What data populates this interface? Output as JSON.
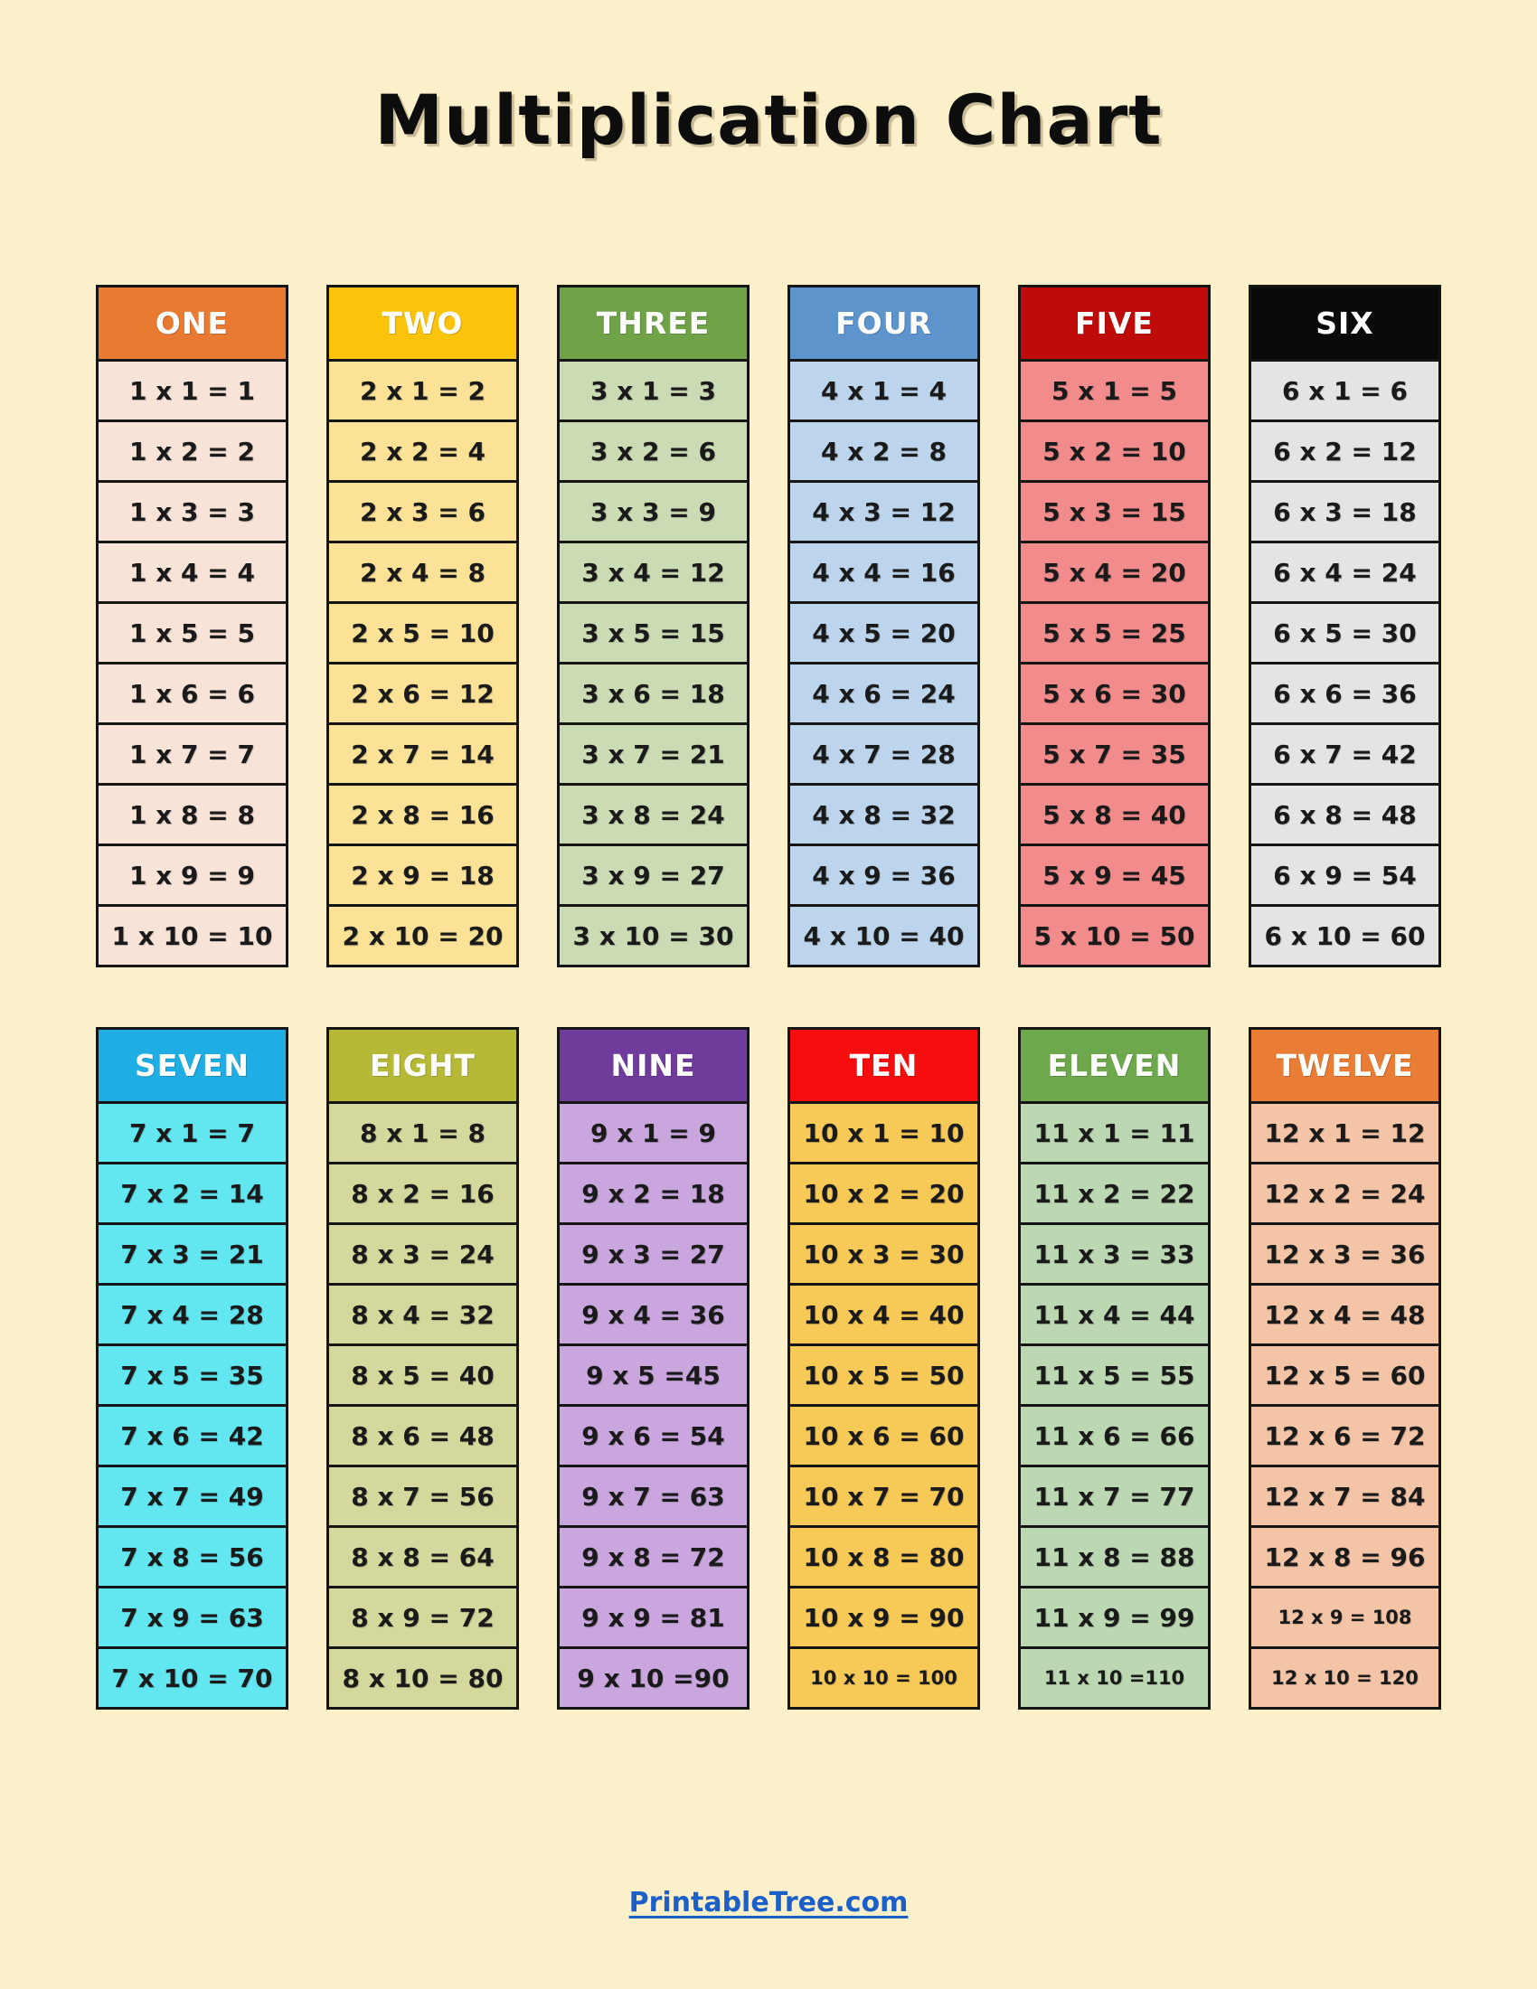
{
  "page": {
    "title": "Multiplication Chart",
    "footer_link": "PrintableTree.com",
    "background_color": "#FCF0CB",
    "link_color": "#1B5FC8",
    "border_color": "#151515"
  },
  "tables": [
    {
      "name": "ONE",
      "header_bg": "#E87A31",
      "header_text_color": "#FFFFFF",
      "body_bg": "#F8E3D8",
      "rows": [
        "1 x 1 = 1",
        "1 x 2 = 2",
        "1 x 3 = 3",
        "1 x 4 = 4",
        "1 x 5 = 5",
        "1 x 6 = 6",
        "1 x 7 = 7",
        "1 x 8 = 8",
        "1 x 9 = 9",
        "1 x 10 = 10"
      ]
    },
    {
      "name": "TWO",
      "header_bg": "#FCC30B",
      "header_text_color": "#FFFFFF",
      "body_bg": "#FBE296",
      "rows": [
        "2 x 1 = 2",
        "2 x 2 = 4",
        "2 x 3 = 6",
        "2 x 4 = 8",
        "2 x 5 = 10",
        "2 x 6 = 12",
        "2 x 7 = 14",
        "2 x 8 = 16",
        "2 x 9 = 18",
        "2 x 10 = 20"
      ]
    },
    {
      "name": "THREE",
      "header_bg": "#70A347",
      "header_text_color": "#FFFFFF",
      "body_bg": "#CBDCB4",
      "rows": [
        "3 x 1 = 3",
        "3 x 2 = 6",
        "3 x 3 = 9",
        "3 x 4 = 12",
        "3 x 5 = 15",
        "3 x 6 = 18",
        "3 x 7 = 21",
        "3 x 8 = 24",
        "3 x 9 = 27",
        "3 x 10 = 30"
      ]
    },
    {
      "name": "FOUR",
      "header_bg": "#5D94CC",
      "header_text_color": "#FFFFFF",
      "body_bg": "#BDD5EC",
      "rows": [
        "4 x 1 = 4",
        "4 x 2 = 8",
        "4 x 3 = 12",
        "4 x 4 = 16",
        "4 x 5 = 20",
        "4 x 6 = 24",
        "4 x 7 = 28",
        "4 x 8 = 32",
        "4 x 9 = 36",
        "4 x 10 = 40"
      ]
    },
    {
      "name": "FIVE",
      "header_bg": "#C00B0B",
      "header_text_color": "#FFFFFF",
      "body_bg": "#F28C8C",
      "rows": [
        "5 x 1 = 5",
        "5 x 2 = 10",
        "5 x 3 = 15",
        "5 x 4 = 20",
        "5 x 5 = 25",
        "5 x 6 = 30",
        "5 x 7 = 35",
        "5 x 8 = 40",
        "5 x 9 = 45",
        "5 x 10 = 50"
      ]
    },
    {
      "name": "SIX",
      "header_bg": "#0A0A0A",
      "header_text_color": "#FFFFFF",
      "body_bg": "#E4E4E4",
      "rows": [
        "6 x 1 = 6",
        "6 x 2 = 12",
        "6 x 3 = 18",
        "6 x 4 = 24",
        "6 x 5 = 30",
        "6 x 6 = 36",
        "6 x 7 = 42",
        "6 x 8 = 48",
        "6 x 9 = 54",
        "6 x 10 = 60"
      ]
    },
    {
      "name": "SEVEN",
      "header_bg": "#1FAEE3",
      "header_text_color": "#FFFFFF",
      "body_bg": "#62E6F0",
      "rows": [
        "7 x 1 = 7",
        "7 x 2 = 14",
        "7 x 3 = 21",
        "7 x 4 = 28",
        "7 x 5 = 35",
        "7 x 6 = 42",
        "7 x 7 = 49",
        "7 x 8 = 56",
        "7 x 9 = 63",
        "7 x 10 = 70"
      ]
    },
    {
      "name": "EIGHT",
      "header_bg": "#B6B935",
      "header_text_color": "#FFFFFF",
      "body_bg": "#D5D89D",
      "rows": [
        "8 x 1 = 8",
        "8 x 2 = 16",
        "8 x 3 = 24",
        "8 x 4 = 32",
        "8 x 5 = 40",
        "8 x 6 = 48",
        "8 x 7 = 56",
        "8 x 8 = 64",
        "8 x 9 = 72",
        "8 x 10 = 80"
      ]
    },
    {
      "name": "NINE",
      "header_bg": "#703C9C",
      "header_text_color": "#FFFFFF",
      "body_bg": "#C9A7DE",
      "rows": [
        "9 x 1 = 9",
        "9 x 2 = 18",
        "9 x 3 = 27",
        "9 x 4 = 36",
        "9 x 5 =45",
        "9 x 6 = 54",
        "9 x 7 = 63",
        "9 x 8 = 72",
        "9 x 9 = 81",
        "9 x 10 =90"
      ]
    },
    {
      "name": "TEN",
      "header_bg": "#F60D0D",
      "header_text_color": "#FFFFFF",
      "body_bg": "#F7CA58",
      "rows": [
        "10 x 1 = 10",
        "10 x 2 = 20",
        "10 x 3 = 30",
        "10 x 4 = 40",
        "10 x 5 = 50",
        "10 x 6 = 60",
        "10 x 7 = 70",
        "10 x 8 = 80",
        "10 x 9 = 90",
        "10 x 10 = 100"
      ]
    },
    {
      "name": "ELEVEN",
      "header_bg": "#6DA84C",
      "header_text_color": "#FFFFFF",
      "body_bg": "#BCD8B2",
      "rows": [
        "11 x 1 = 11",
        "11 x 2 = 22",
        "11 x 3 = 33",
        "11 x 4 = 44",
        "11 x 5 = 55",
        "11 x 6 = 66",
        "11 x 7 = 77",
        "11 x 8 = 88",
        "11 x 9 = 99",
        "11 x 10 =110"
      ]
    },
    {
      "name": "TWELVE",
      "header_bg": "#EA7D35",
      "header_text_color": "#FFFFFF",
      "body_bg": "#F4C4A7",
      "rows": [
        "12 x 1 = 12",
        "12 x 2 = 24",
        "12 x 3 = 36",
        "12 x 4 = 48",
        "12 x 5 = 60",
        "12 x 6 = 72",
        "12 x 7 = 84",
        "12 x 8 = 96",
        "12 x 9 = 108",
        "12 x 10 = 120"
      ]
    }
  ]
}
